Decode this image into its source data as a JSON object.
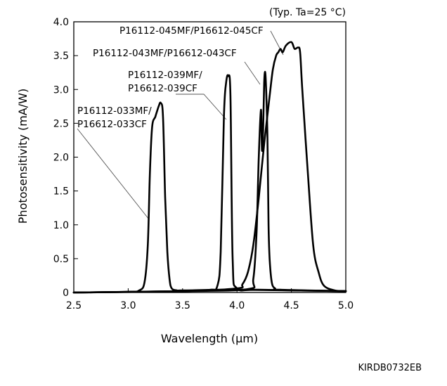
{
  "chart_data": {
    "type": "line",
    "condition_note": "(Typ. Ta=25 °C)",
    "xlabel": "Wavelength (μm)",
    "ylabel": "Photosensitivity (mA/W)",
    "xlim": [
      2.5,
      5.0
    ],
    "ylim": [
      0,
      4.0
    ],
    "x_ticks": [
      "2.5",
      "3.0",
      "3.5",
      "4.0",
      "4.5",
      "5.0"
    ],
    "y_ticks": [
      "0",
      "0.5",
      "1.0",
      "1.5",
      "2.0",
      "2.5",
      "3.0",
      "3.5",
      "4.0"
    ],
    "grid": false,
    "doc_code": "KIRDB0732EB",
    "series": [
      {
        "name": "P16112-033MF/P16612-033CF",
        "label_lines": [
          "P16112-033MF/",
          "P16612-033CF"
        ],
        "x": [
          2.5,
          3.0,
          3.1,
          3.15,
          3.18,
          3.2,
          3.22,
          3.25,
          3.28,
          3.3,
          3.32,
          3.34,
          3.36,
          3.38,
          3.4,
          3.45,
          3.5,
          4.0,
          5.0
        ],
        "y": [
          0.0,
          0.01,
          0.03,
          0.15,
          0.7,
          1.8,
          2.45,
          2.6,
          2.75,
          2.8,
          2.6,
          1.4,
          0.6,
          0.2,
          0.06,
          0.03,
          0.03,
          0.04,
          0.02
        ]
      },
      {
        "name": "P16112-039MF/P16612-039CF",
        "label_lines": [
          "P16112-039MF/",
          "P16612-039CF"
        ],
        "x": [
          2.5,
          3.5,
          3.75,
          3.82,
          3.85,
          3.88,
          3.9,
          3.92,
          3.94,
          3.96,
          4.0,
          4.2,
          5.0
        ],
        "y": [
          0.0,
          0.02,
          0.04,
          0.1,
          0.6,
          2.6,
          3.1,
          3.2,
          2.9,
          0.5,
          0.06,
          0.04,
          0.02
        ]
      },
      {
        "name": "P16112-043MF/P16612-043CF",
        "label_lines": [
          "P16112-043MF/P16612-043CF"
        ],
        "x": [
          2.5,
          3.5,
          4.1,
          4.15,
          4.18,
          4.2,
          4.22,
          4.23,
          4.24,
          4.25,
          4.26,
          4.27,
          4.28,
          4.29,
          4.3,
          4.32,
          4.35,
          4.4,
          5.0
        ],
        "y": [
          0.0,
          0.02,
          0.05,
          0.2,
          0.9,
          2.0,
          2.7,
          2.1,
          2.4,
          3.1,
          3.25,
          2.9,
          2.3,
          1.0,
          0.5,
          0.15,
          0.06,
          0.04,
          0.02
        ]
      },
      {
        "name": "P16112-045MF/P16612-045CF",
        "label_lines": [
          "P16112-045MF/P16612-045CF"
        ],
        "x": [
          2.5,
          3.5,
          4.0,
          4.05,
          4.1,
          4.15,
          4.2,
          4.25,
          4.3,
          4.33,
          4.36,
          4.38,
          4.4,
          4.42,
          4.45,
          4.5,
          4.53,
          4.56,
          4.58,
          4.6,
          4.65,
          4.7,
          4.75,
          4.8,
          4.9,
          5.0
        ],
        "y": [
          0.0,
          0.02,
          0.06,
          0.12,
          0.3,
          0.7,
          1.4,
          2.2,
          2.9,
          3.3,
          3.5,
          3.55,
          3.6,
          3.55,
          3.65,
          3.7,
          3.6,
          3.62,
          3.55,
          3.0,
          1.8,
          0.7,
          0.3,
          0.1,
          0.03,
          0.02
        ]
      }
    ]
  }
}
